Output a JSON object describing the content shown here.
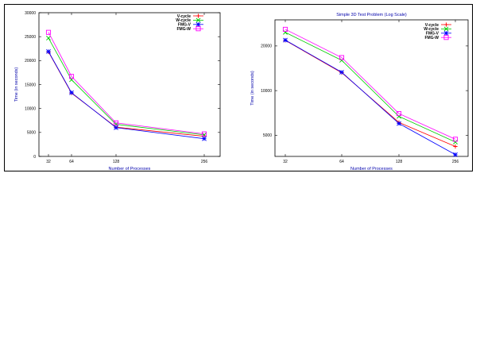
{
  "chart_data": [
    {
      "type": "line",
      "title": "",
      "xlabel": "Number of Processes",
      "ylabel": "Time (in seconds)",
      "y_scale": "linear",
      "x_ticks": [
        "32",
        "64",
        "128",
        "256"
      ],
      "y_ticks": [
        "0",
        "5000",
        "10000",
        "15000",
        "20000",
        "25000",
        "30000"
      ],
      "ylim": [
        0,
        30000
      ],
      "legend_position": "top-right",
      "grid": false,
      "series": [
        {
          "name": "V-cycle",
          "color": "#ff0000",
          "marker": "plus",
          "values": [
            21800,
            13200,
            6100,
            4200
          ]
        },
        {
          "name": "W-cycle",
          "color": "#00cc00",
          "marker": "x",
          "values": [
            24700,
            16000,
            6700,
            4500
          ]
        },
        {
          "name": "FMG-V",
          "color": "#0000ff",
          "marker": "star",
          "values": [
            21900,
            13300,
            6000,
            3700
          ]
        },
        {
          "name": "FMG-W",
          "color": "#ff00ff",
          "marker": "square",
          "values": [
            25900,
            16700,
            7000,
            4700
          ]
        }
      ]
    },
    {
      "type": "line",
      "title": "Simple 3D Test Problem (Log Scale)",
      "xlabel": "Number of Processes",
      "ylabel": "Time (in seconds)",
      "y_scale": "log",
      "x_ticks": [
        "32",
        "64",
        "128",
        "256"
      ],
      "y_ticks": [
        "5000",
        "10000",
        "20000"
      ],
      "ylim": [
        3600,
        30000
      ],
      "legend_position": "top-right",
      "grid": false,
      "series": [
        {
          "name": "V-cycle",
          "color": "#ff0000",
          "marker": "plus",
          "values": [
            21800,
            13200,
            6100,
            4200
          ]
        },
        {
          "name": "W-cycle",
          "color": "#00cc00",
          "marker": "x",
          "values": [
            24700,
            16000,
            6700,
            4500
          ]
        },
        {
          "name": "FMG-V",
          "color": "#0000ff",
          "marker": "star",
          "values": [
            21900,
            13300,
            6000,
            3700
          ]
        },
        {
          "name": "FMG-W",
          "color": "#ff00ff",
          "marker": "square",
          "values": [
            25900,
            16700,
            7000,
            4700
          ]
        }
      ]
    }
  ]
}
